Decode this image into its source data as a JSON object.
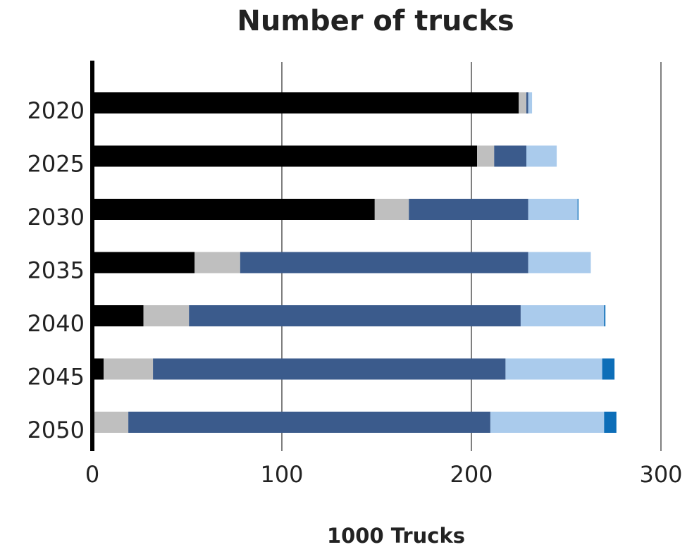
{
  "chart_data": {
    "type": "bar",
    "orientation": "horizontal",
    "stacked": true,
    "title": "Number of trucks",
    "xlabel": "1000 Trucks",
    "ylabel": "",
    "xlim": [
      0,
      300
    ],
    "xticks": [
      0,
      100,
      200,
      300
    ],
    "grid": "vertical",
    "legend": "none",
    "categories": [
      "2020",
      "2025",
      "2030",
      "2035",
      "2040",
      "2045",
      "2050"
    ],
    "series": [
      {
        "color": "#000000",
        "values": [
          225,
          203,
          149,
          54,
          27,
          6,
          0
        ]
      },
      {
        "color": "#bfbfbf",
        "values": [
          4,
          9,
          18,
          24,
          24,
          26,
          19
        ]
      },
      {
        "color": "#3b5b8c",
        "values": [
          1,
          17,
          63,
          152,
          175,
          186,
          191
        ]
      },
      {
        "color": "#aacbec",
        "values": [
          2,
          16,
          26,
          33,
          44,
          51,
          60
        ]
      },
      {
        "color": "#0d6eb8",
        "values": [
          0,
          0,
          0.5,
          0,
          0.7,
          6.5,
          6.5
        ]
      }
    ]
  }
}
